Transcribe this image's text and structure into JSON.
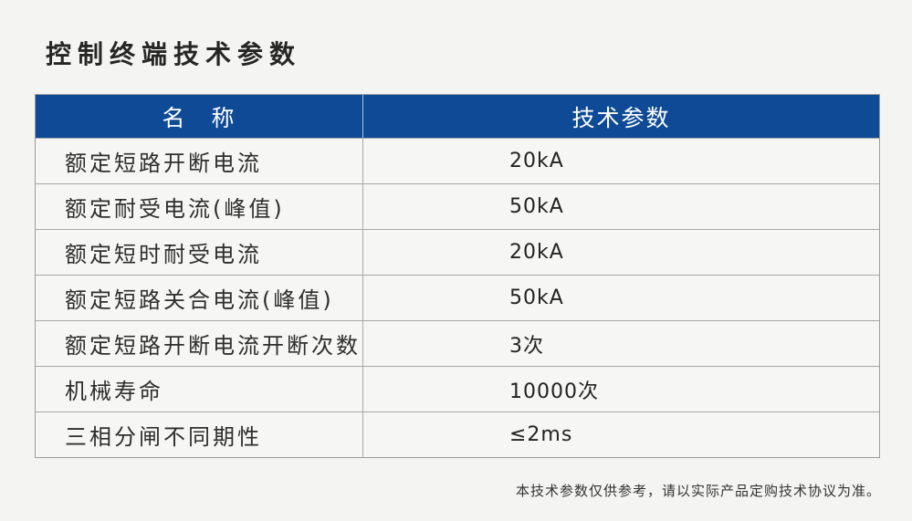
{
  "page": {
    "title": "控制终端技术参数",
    "footnote": "本技术参数仅供参考，请以实际产品定购技术协议为准。"
  },
  "colors": {
    "header_bg": "#0e4a96",
    "header_text": "#ffffff",
    "page_bg": "#f4f4f2",
    "cell_bg": "#f6f6f4",
    "border": "#a8a8a8",
    "title_text": "#262626"
  },
  "table": {
    "headers": [
      "名　称",
      "技术参数"
    ],
    "rows": [
      {
        "name": "额定短路开断电流",
        "value": "20kA"
      },
      {
        "name": "额定耐受电流(峰值)",
        "value": "50kA"
      },
      {
        "name": "额定短时耐受电流",
        "value": "20kA"
      },
      {
        "name": "额定短路关合电流(峰值)",
        "value": "50kA"
      },
      {
        "name": "额定短路开断电流开断次数",
        "value": "3次"
      },
      {
        "name": "机械寿命",
        "value": "10000次"
      },
      {
        "name": "三相分闸不同期性",
        "value": "≤2ms"
      }
    ]
  }
}
